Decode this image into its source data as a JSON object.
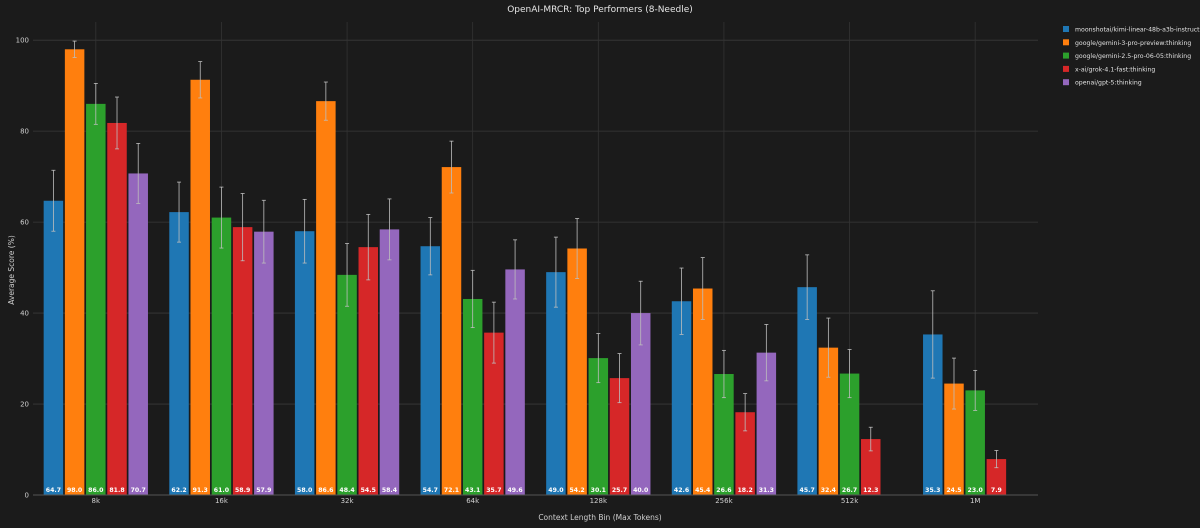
{
  "chart_data": {
    "type": "bar",
    "title": "OpenAI-MRCR: Top Performers (8-Needle)",
    "xlabel": "Context Length Bin (Max Tokens)",
    "ylabel": "Average Score (%)",
    "ylim": [
      0,
      104
    ],
    "yticks": [
      "0",
      "20",
      "40",
      "60",
      "80",
      "100"
    ],
    "grid": true,
    "legend_position": "top-right",
    "categories": [
      "8k",
      "16k",
      "32k",
      "64k",
      "128k",
      "256k",
      "512k",
      "1M"
    ],
    "series": [
      {
        "name": "moonshotai/kimi-linear-48b-a3b-instruct",
        "color": "#1f77b4",
        "values": [
          64.7,
          62.2,
          58.0,
          54.7,
          49.0,
          42.6,
          45.7,
          35.3
        ],
        "labels": [
          "64.7",
          "62.2",
          "58.0",
          "54.7",
          "49.0",
          "42.6",
          "45.7",
          "35.3"
        ],
        "errors": [
          6.7,
          6.6,
          7.0,
          6.3,
          7.7,
          7.3,
          7.1,
          9.6
        ]
      },
      {
        "name": "google/gemini-3-pro-preview:thinking",
        "color": "#ff7f0e",
        "values": [
          98.0,
          91.3,
          86.6,
          72.1,
          54.2,
          45.4,
          32.4,
          24.5
        ],
        "labels": [
          "98.0",
          "91.3",
          "86.6",
          "72.1",
          "54.2",
          "45.4",
          "32.4",
          "24.5"
        ],
        "errors": [
          1.8,
          4.0,
          4.2,
          5.7,
          6.6,
          6.8,
          6.5,
          5.6
        ]
      },
      {
        "name": "google/gemini-2.5-pro-06-05:thinking",
        "color": "#2ca02c",
        "values": [
          86.0,
          61.0,
          48.4,
          43.1,
          30.1,
          26.6,
          26.7,
          23.0
        ],
        "labels": [
          "86.0",
          "61.0",
          "48.4",
          "43.1",
          "30.1",
          "26.6",
          "26.7",
          "23.0"
        ],
        "errors": [
          4.5,
          6.7,
          6.9,
          6.3,
          5.4,
          5.2,
          5.3,
          4.4
        ]
      },
      {
        "name": "x-ai/grok-4.1-fast:thinking",
        "color": "#d62728",
        "values": [
          81.8,
          58.9,
          54.5,
          35.7,
          25.7,
          18.2,
          12.3,
          7.9
        ],
        "labels": [
          "81.8",
          "58.9",
          "54.5",
          "35.7",
          "25.7",
          "18.2",
          "12.3",
          "7.9"
        ],
        "errors": [
          5.7,
          7.4,
          7.2,
          6.7,
          5.4,
          4.1,
          2.6,
          1.9
        ]
      },
      {
        "name": "openai/gpt-5:thinking",
        "color": "#9467bd",
        "values": [
          70.7,
          57.9,
          58.4,
          49.6,
          40.0,
          31.3,
          null,
          null
        ],
        "labels": [
          "70.7",
          "57.9",
          "58.4",
          "49.6",
          "40.0",
          "31.3",
          null,
          null
        ],
        "errors": [
          6.6,
          6.9,
          6.7,
          6.5,
          7.0,
          6.2,
          null,
          null
        ]
      }
    ]
  }
}
